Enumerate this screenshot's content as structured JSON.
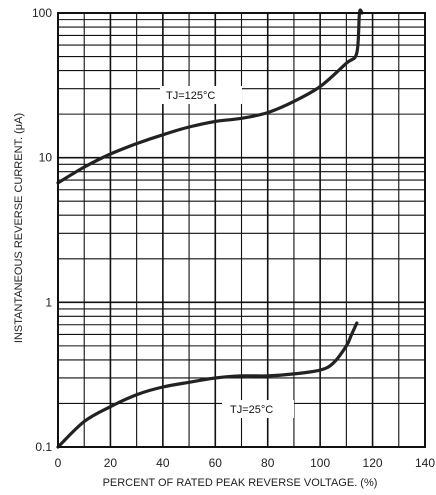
{
  "chart_data": {
    "type": "line",
    "title": "",
    "xlabel": "PERCENT OF RATED PEAK REVERSE VOLTAGE. (%)",
    "ylabel": "INSTANTANEOUS REVERSE CURRENT. (μA)",
    "xlim": [
      0,
      140
    ],
    "ylim": [
      0.1,
      100
    ],
    "yscale": "log",
    "grid": true,
    "x_ticks": [
      "0",
      "20",
      "40",
      "60",
      "80",
      "100",
      "120",
      "140"
    ],
    "y_ticks": [
      "0.1",
      "1",
      "10",
      "100"
    ],
    "series": [
      {
        "name": "TJ=125°C",
        "color": "#222222",
        "x": [
          0,
          10,
          20,
          30,
          40,
          50,
          60,
          70,
          80,
          90,
          100,
          110,
          114,
          115,
          116
        ],
        "y": [
          6.7,
          8.6,
          10.6,
          12.5,
          14.4,
          16.3,
          17.8,
          18.7,
          20.5,
          24.5,
          31,
          45,
          53,
          100,
          100
        ]
      },
      {
        "name": "TJ=25°C",
        "color": "#222222",
        "x": [
          0,
          10,
          20,
          30,
          40,
          50,
          60,
          70,
          80,
          90,
          100,
          105,
          110,
          112,
          114
        ],
        "y": [
          0.1,
          0.15,
          0.19,
          0.23,
          0.26,
          0.28,
          0.3,
          0.31,
          0.31,
          0.32,
          0.34,
          0.38,
          0.5,
          0.6,
          0.72
        ]
      }
    ]
  },
  "labels": {
    "series_125_text": "TJ=125°C",
    "series_25_text": "TJ=25°C"
  }
}
